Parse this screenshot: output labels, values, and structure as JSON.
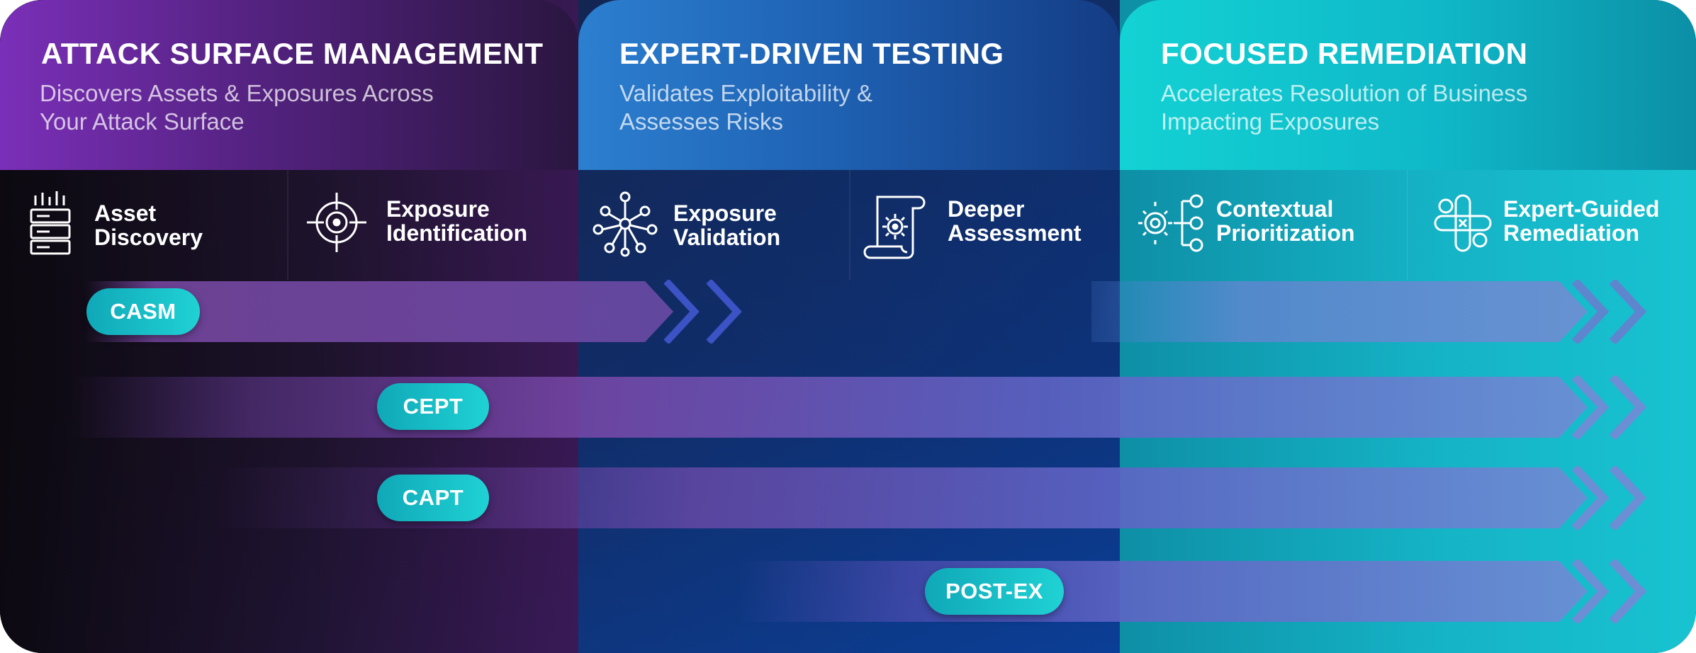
{
  "columns": [
    {
      "title": "ATTACK SURFACE MANAGEMENT",
      "subtitle_lines": [
        "Discovers Assets & Exposures Across",
        "Your Attack Surface"
      ]
    },
    {
      "title": "EXPERT-DRIVEN TESTING",
      "subtitle_lines": [
        "Validates Exploitability &",
        "Assesses Risks"
      ]
    },
    {
      "title": "FOCUSED REMEDIATION",
      "subtitle_lines": [
        "Accelerates Resolution of Business",
        "Impacting Exposures"
      ]
    }
  ],
  "steps": [
    {
      "lines": [
        "Asset",
        "Discovery"
      ],
      "icon": "server-stack-icon"
    },
    {
      "lines": [
        "Exposure",
        "Identification"
      ],
      "icon": "crosshair-target-icon"
    },
    {
      "lines": [
        "Exposure",
        "Validation"
      ],
      "icon": "network-nodes-icon"
    },
    {
      "lines": [
        "Deeper",
        "Assessment"
      ],
      "icon": "scroll-gear-icon"
    },
    {
      "lines": [
        "Contextual",
        "Prioritization"
      ],
      "icon": "gear-hierarchy-icon"
    },
    {
      "lines": [
        "Expert-Guided",
        "Remediation"
      ],
      "icon": "bandage-cross-icon"
    }
  ],
  "bands": [
    {
      "label": "CASM"
    },
    {
      "label": "CEPT"
    },
    {
      "label": "CAPT"
    },
    {
      "label": "POST-EX"
    }
  ]
}
